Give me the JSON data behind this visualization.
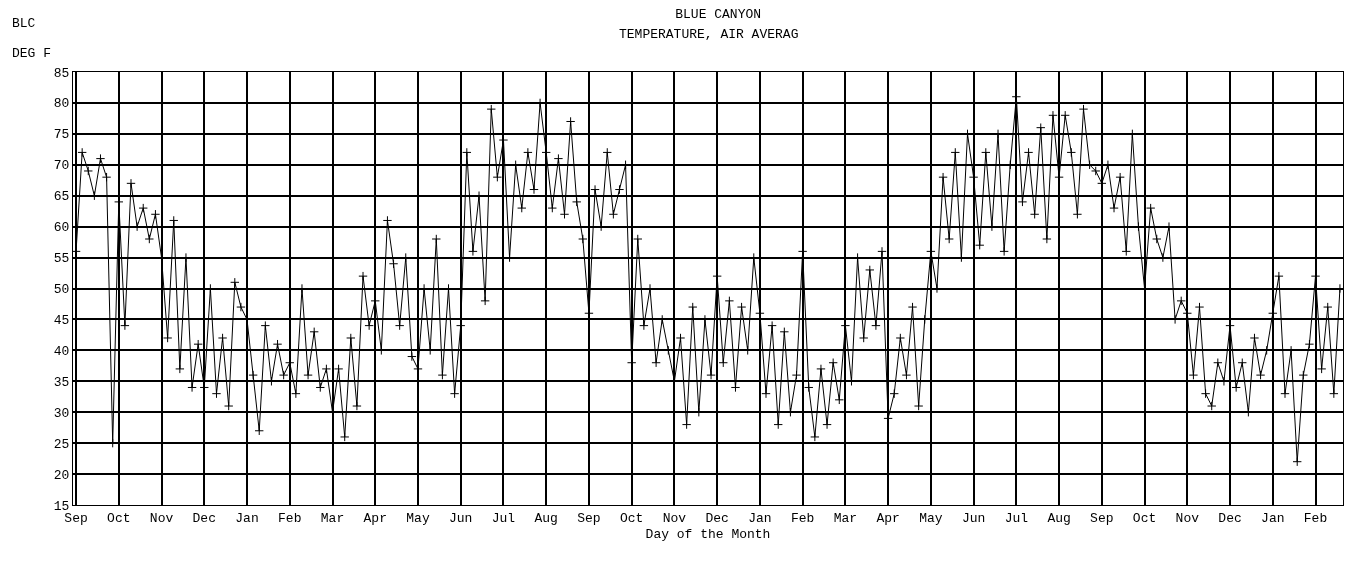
{
  "chart_data": {
    "type": "line",
    "title": "BLUE CANYON",
    "subtitle": "TEMPERATURE, AIR AVERAG",
    "xlabel": "Day of the Month",
    "ylabel": "DEG F",
    "annotations": [
      "BLC"
    ],
    "categories": [
      "Sep",
      null,
      null,
      null,
      null,
      null,
      null,
      "Oct",
      null,
      null,
      null,
      null,
      null,
      null,
      "Nov",
      null,
      null,
      null,
      null,
      null,
      null,
      "Dec",
      null,
      null,
      null,
      null,
      null,
      null,
      "Jan",
      null,
      null,
      null,
      null,
      null,
      null,
      "Feb",
      null,
      null,
      null,
      null,
      null,
      null,
      "Mar",
      null,
      null,
      null,
      null,
      null,
      null,
      "Apr",
      null,
      null,
      null,
      null,
      null,
      null,
      "May",
      null,
      null,
      null,
      null,
      null,
      null,
      "Jun",
      null,
      null,
      null,
      null,
      null,
      null,
      "Jul",
      null,
      null,
      null,
      null,
      null,
      null,
      "Aug",
      null,
      null,
      null,
      null,
      null,
      null,
      "Sep",
      null,
      null,
      null,
      null,
      null,
      null,
      "Oct",
      null,
      null,
      null,
      null,
      null,
      null,
      "Nov",
      null,
      null,
      null,
      null,
      null,
      null,
      "Dec",
      null,
      null,
      null,
      null,
      null,
      null,
      "Jan",
      null,
      null,
      null,
      null,
      null,
      null,
      "Feb",
      null,
      null,
      null,
      null,
      null,
      null,
      "Mar",
      null,
      null,
      null,
      null,
      null,
      null,
      "Apr",
      null,
      null,
      null,
      null,
      null,
      null,
      "May",
      null,
      null,
      null,
      null,
      null,
      null,
      "Jun",
      null,
      null,
      null,
      null,
      null,
      null,
      "Jul",
      null,
      null,
      null,
      null,
      null,
      null,
      "Aug",
      null,
      null,
      null,
      null,
      null,
      null,
      "Sep",
      null,
      null,
      null,
      null,
      null,
      null,
      "Oct",
      null,
      null,
      null,
      null,
      null,
      null,
      "Nov",
      null,
      null,
      null,
      null,
      null,
      null,
      "Dec",
      null,
      null,
      null,
      null,
      null,
      null,
      "Jan",
      null,
      null,
      null,
      null,
      null,
      null,
      "Feb",
      null,
      null,
      null,
      null
    ],
    "values": [
      56,
      72,
      69,
      65,
      71,
      68,
      25,
      64,
      44,
      67,
      60,
      63,
      58,
      62,
      55,
      42,
      61,
      37,
      55,
      34,
      41,
      34,
      50,
      33,
      42,
      31,
      51,
      47,
      45,
      36,
      27,
      44,
      35,
      41,
      36,
      38,
      33,
      50,
      36,
      43,
      34,
      37,
      30,
      37,
      26,
      42,
      31,
      52,
      44,
      48,
      40,
      61,
      54,
      44,
      55,
      39,
      37,
      50,
      40,
      58,
      36,
      50,
      33,
      44,
      72,
      56,
      65,
      48,
      79,
      68,
      74,
      55,
      70,
      63,
      72,
      66,
      80,
      72,
      63,
      71,
      62,
      77,
      64,
      58,
      46,
      66,
      60,
      72,
      62,
      66,
      70,
      38,
      58,
      44,
      50,
      38,
      45,
      40,
      35,
      42,
      28,
      47,
      30,
      45,
      36,
      52,
      38,
      48,
      34,
      47,
      40,
      55,
      46,
      33,
      44,
      28,
      43,
      30,
      36,
      56,
      34,
      26,
      37,
      28,
      38,
      32,
      44,
      35,
      55,
      42,
      53,
      44,
      56,
      29,
      33,
      42,
      36,
      47,
      31,
      45,
      56,
      50,
      68,
      58,
      72,
      55,
      75,
      68,
      57,
      72,
      60,
      75,
      56,
      70,
      81,
      64,
      72,
      62,
      76,
      58,
      78,
      68,
      78,
      72,
      62,
      79,
      70,
      69,
      67,
      70,
      63,
      68,
      56,
      75,
      60,
      50,
      63,
      58,
      55,
      60,
      45,
      48,
      46,
      36,
      47,
      33,
      31,
      38,
      35,
      44,
      34,
      38,
      30,
      42,
      36,
      40,
      46,
      52,
      33,
      40,
      22,
      36,
      41,
      52,
      37,
      47,
      33,
      50
    ],
    "color": "#000000",
    "marker": "cross",
    "line_style": "solid",
    "grid": true,
    "ylim": [
      15,
      85
    ],
    "yticks": [
      15,
      20,
      25,
      30,
      35,
      40,
      45,
      50,
      55,
      60,
      65,
      70,
      75,
      80,
      85
    ]
  }
}
